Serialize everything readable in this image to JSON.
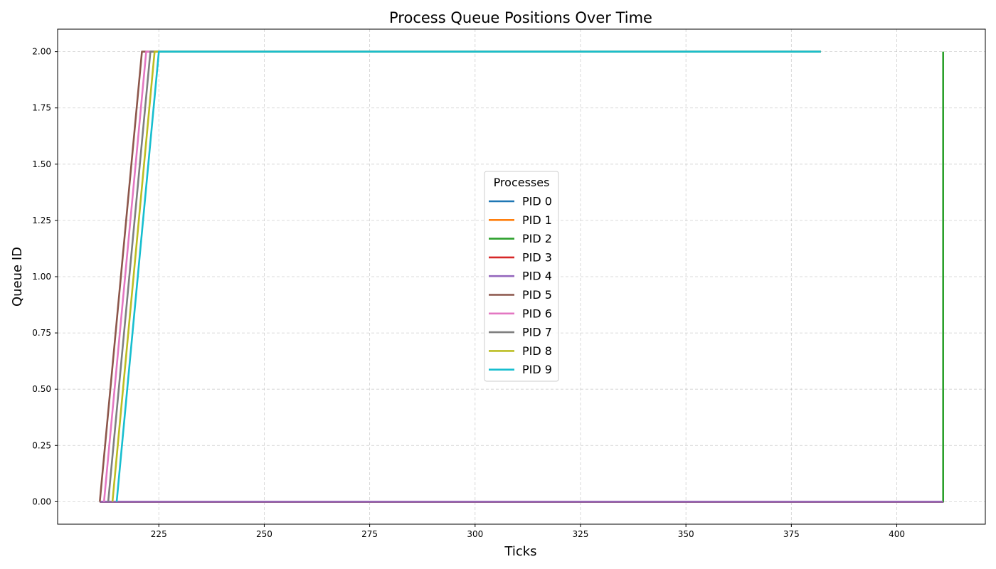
{
  "chart_data": {
    "type": "line",
    "title": "Process Queue Positions Over Time",
    "xlabel": "Ticks",
    "ylabel": "Queue ID",
    "xlim": [
      201,
      421
    ],
    "ylim": [
      -0.1,
      2.1
    ],
    "x_ticks": [
      225,
      250,
      275,
      300,
      325,
      350,
      375,
      400
    ],
    "x_tick_labels": [
      "225",
      "250",
      "275",
      "300",
      "325",
      "350",
      "375",
      "400"
    ],
    "y_ticks": [
      0,
      0.25,
      0.5,
      0.75,
      1.0,
      1.25,
      1.5,
      1.75,
      2.0
    ],
    "y_tick_labels": [
      "0.00",
      "0.25",
      "0.50",
      "0.75",
      "1.00",
      "1.25",
      "1.50",
      "1.75",
      "2.00"
    ],
    "grid": true,
    "legend": {
      "title": "Processes",
      "placement": "center"
    },
    "series": [
      {
        "name": "PID 0",
        "color": "#1f77b4",
        "points": [
          [
            211,
            0
          ],
          [
            411,
            0
          ]
        ]
      },
      {
        "name": "PID 1",
        "color": "#ff7f0e",
        "points": [
          [
            211,
            0
          ],
          [
            411,
            0
          ]
        ]
      },
      {
        "name": "PID 2",
        "color": "#2ca02c",
        "points": [
          [
            211,
            0
          ],
          [
            411,
            0
          ],
          [
            411,
            2
          ]
        ]
      },
      {
        "name": "PID 3",
        "color": "#d62728",
        "points": [
          [
            211,
            0
          ],
          [
            411,
            0
          ]
        ]
      },
      {
        "name": "PID 4",
        "color": "#9467bd",
        "points": [
          [
            211,
            0
          ],
          [
            411,
            0
          ]
        ]
      },
      {
        "name": "PID 5",
        "color": "#8c564b",
        "points": [
          [
            211,
            0
          ],
          [
            221,
            2
          ],
          [
            382,
            2
          ]
        ]
      },
      {
        "name": "PID 6",
        "color": "#e377c2",
        "points": [
          [
            212,
            0
          ],
          [
            222,
            2
          ],
          [
            382,
            2
          ]
        ]
      },
      {
        "name": "PID 7",
        "color": "#7f7f7f",
        "points": [
          [
            213,
            0
          ],
          [
            223,
            2
          ],
          [
            382,
            2
          ]
        ]
      },
      {
        "name": "PID 8",
        "color": "#bcbd22",
        "points": [
          [
            214,
            0
          ],
          [
            224,
            2
          ],
          [
            382,
            2
          ]
        ]
      },
      {
        "name": "PID 9",
        "color": "#17becf",
        "points": [
          [
            215,
            0
          ],
          [
            225,
            2
          ],
          [
            382,
            2
          ]
        ]
      }
    ]
  }
}
